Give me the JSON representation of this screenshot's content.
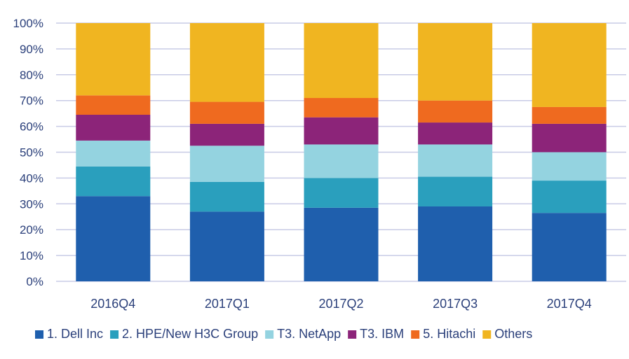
{
  "chart_data": {
    "type": "bar",
    "stacked": true,
    "percent": true,
    "categories": [
      "2016Q4",
      "2017Q1",
      "2017Q2",
      "2017Q3",
      "2017Q4"
    ],
    "series": [
      {
        "name": "1. Dell Inc",
        "color": "#1f5fad",
        "values": [
          33,
          27,
          28.5,
          29,
          26.5
        ]
      },
      {
        "name": "2. HPE/New H3C Group",
        "color": "#2a9fbd",
        "values": [
          11.5,
          11.5,
          11.5,
          11.5,
          12.5
        ]
      },
      {
        "name": "T3. NetApp",
        "color": "#94d3e0",
        "values": [
          10,
          14,
          13,
          12.5,
          11
        ]
      },
      {
        "name": "T3. IBM",
        "color": "#8c2479",
        "values": [
          10,
          8.5,
          10.5,
          8.5,
          11
        ]
      },
      {
        "name": "5. Hitachi",
        "color": "#ef6a1f",
        "values": [
          7.5,
          8.5,
          7.5,
          8.5,
          6.5
        ]
      },
      {
        "name": "Others",
        "color": "#f0b521",
        "values": [
          28,
          30.5,
          29,
          30,
          32.5
        ]
      }
    ],
    "yticks": [
      "0%",
      "10%",
      "20%",
      "30%",
      "40%",
      "50%",
      "60%",
      "70%",
      "80%",
      "90%",
      "100%"
    ],
    "ylim": [
      0,
      100
    ],
    "grid": true,
    "legend_position": "bottom"
  }
}
